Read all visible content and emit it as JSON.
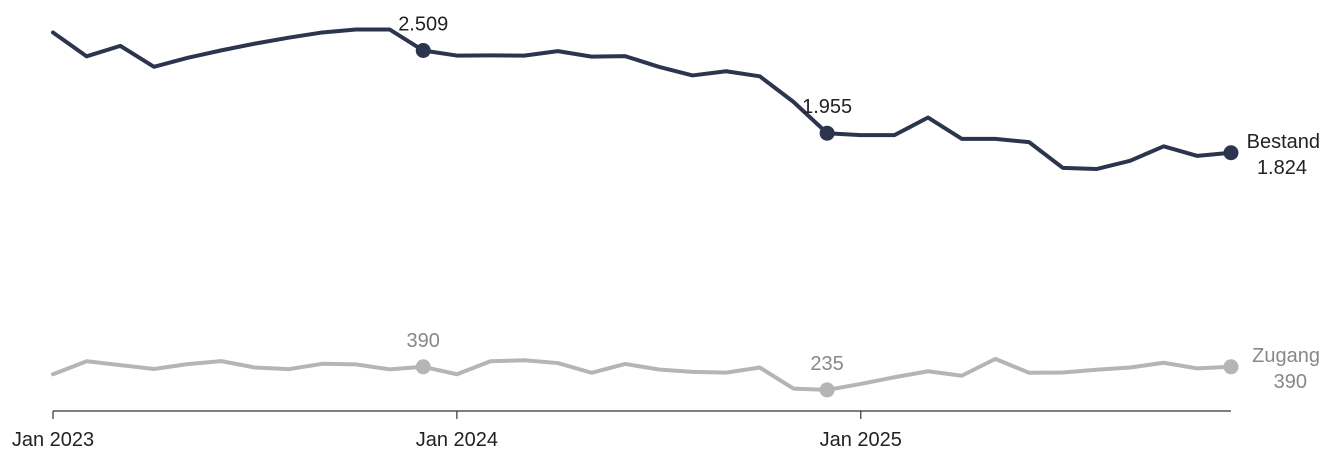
{
  "chart_data": {
    "type": "line",
    "x_unit": "month",
    "x": [
      "2023-01",
      "2023-02",
      "2023-03",
      "2023-04",
      "2023-05",
      "2023-06",
      "2023-07",
      "2023-08",
      "2023-09",
      "2023-10",
      "2023-11",
      "2023-12",
      "2024-01",
      "2024-02",
      "2024-03",
      "2024-04",
      "2024-05",
      "2024-06",
      "2024-07",
      "2024-08",
      "2024-09",
      "2024-10",
      "2024-11",
      "2024-12",
      "2025-01",
      "2025-02",
      "2025-03",
      "2025-04",
      "2025-05",
      "2025-06",
      "2025-07",
      "2025-08",
      "2025-09",
      "2025-10",
      "2025-11",
      "2025-12"
    ],
    "x_ticks": [
      {
        "date": "2023-01",
        "label": "Jan 2023"
      },
      {
        "date": "2024-01",
        "label": "Jan 2024"
      },
      {
        "date": "2025-01",
        "label": "Jan 2025"
      }
    ],
    "xlim": [
      "2023-01",
      "2025-12"
    ],
    "ylim": [
      0,
      2700
    ],
    "grid": false,
    "legend": "none",
    "series": [
      {
        "name": "Bestand",
        "color": "#2b354d",
        "values": [
          2630,
          2470,
          2540,
          2400,
          2460,
          2510,
          2555,
          2595,
          2630,
          2650,
          2650,
          2509,
          2475,
          2476,
          2475,
          2505,
          2468,
          2471,
          2400,
          2342,
          2370,
          2336,
          2165,
          1955,
          1942,
          1942,
          2060,
          1917,
          1917,
          1895,
          1723,
          1715,
          1770,
          1867,
          1803,
          1824
        ],
        "highlights": [
          {
            "index": 11,
            "label": "2.509"
          },
          {
            "index": 23,
            "label": "1.955"
          }
        ],
        "end_label": {
          "name": "Bestand",
          "value": "1.824"
        }
      },
      {
        "name": "Zugang",
        "color": "#b5b5b5",
        "values": [
          340,
          427,
          401,
          375,
          408,
          428,
          385,
          374,
          410,
          406,
          373,
          390,
          340,
          427,
          434,
          415,
          350,
          409,
          372,
          356,
          351,
          385,
          244,
          235,
          275,
          320,
          360,
          330,
          443,
          350,
          352,
          370,
          385,
          417,
          379,
          390
        ],
        "highlights": [
          {
            "index": 11,
            "label": "390"
          },
          {
            "index": 23,
            "label": "235"
          }
        ],
        "end_label": {
          "name": "Zugang",
          "value": "390"
        }
      }
    ]
  }
}
